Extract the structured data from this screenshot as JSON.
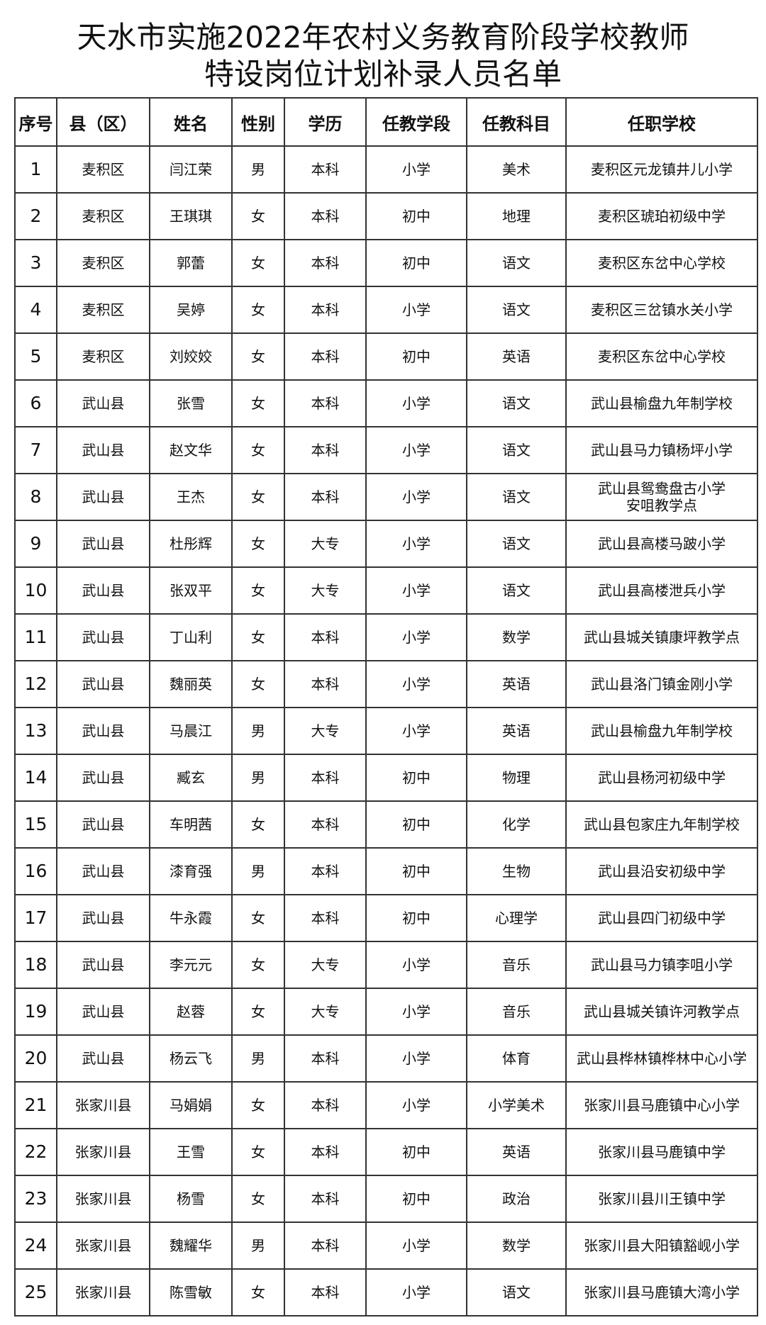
{
  "title": {
    "line1": "天水市实施2022年农村义务教育阶段学校教师",
    "line2": "特设岗位计划补录人员名单"
  },
  "table": {
    "headers": [
      "序号",
      "县（区）",
      "姓名",
      "性别",
      "学历",
      "任教学段",
      "任教科目",
      "任职学校"
    ],
    "rows": [
      [
        "1",
        "麦积区",
        "闫江荣",
        "男",
        "本科",
        "小学",
        "美术",
        "麦积区元龙镇井儿小学"
      ],
      [
        "2",
        "麦积区",
        "王琪琪",
        "女",
        "本科",
        "初中",
        "地理",
        "麦积区琥珀初级中学"
      ],
      [
        "3",
        "麦积区",
        "郭蕾",
        "女",
        "本科",
        "初中",
        "语文",
        "麦积区东岔中心学校"
      ],
      [
        "4",
        "麦积区",
        "吴婷",
        "女",
        "本科",
        "小学",
        "语文",
        "麦积区三岔镇水关小学"
      ],
      [
        "5",
        "麦积区",
        "刘姣姣",
        "女",
        "本科",
        "初中",
        "英语",
        "麦积区东岔中心学校"
      ],
      [
        "6",
        "武山县",
        "张雪",
        "女",
        "本科",
        "小学",
        "语文",
        "武山县榆盘九年制学校"
      ],
      [
        "7",
        "武山县",
        "赵文华",
        "女",
        "本科",
        "小学",
        "语文",
        "武山县马力镇杨坪小学"
      ],
      [
        "8",
        "武山县",
        "王杰",
        "女",
        "本科",
        "小学",
        "语文",
        "武山县鸳鸯盘古小学\n安咀教学点"
      ],
      [
        "9",
        "武山县",
        "杜彤辉",
        "女",
        "大专",
        "小学",
        "语文",
        "武山县高楼马跛小学"
      ],
      [
        "10",
        "武山县",
        "张双平",
        "女",
        "大专",
        "小学",
        "语文",
        "武山县高楼泄兵小学"
      ],
      [
        "11",
        "武山县",
        "丁山利",
        "女",
        "本科",
        "小学",
        "数学",
        "武山县城关镇康坪教学点"
      ],
      [
        "12",
        "武山县",
        "魏丽英",
        "女",
        "本科",
        "小学",
        "英语",
        "武山县洛门镇金刚小学"
      ],
      [
        "13",
        "武山县",
        "马晨江",
        "男",
        "大专",
        "小学",
        "英语",
        "武山县榆盘九年制学校"
      ],
      [
        "14",
        "武山县",
        "臧玄",
        "男",
        "本科",
        "初中",
        "物理",
        "武山县杨河初级中学"
      ],
      [
        "15",
        "武山县",
        "车明茜",
        "女",
        "本科",
        "初中",
        "化学",
        "武山县包家庄九年制学校"
      ],
      [
        "16",
        "武山县",
        "漆育强",
        "男",
        "本科",
        "初中",
        "生物",
        "武山县沿安初级中学"
      ],
      [
        "17",
        "武山县",
        "牛永霞",
        "女",
        "本科",
        "初中",
        "心理学",
        "武山县四门初级中学"
      ],
      [
        "18",
        "武山县",
        "李元元",
        "女",
        "大专",
        "小学",
        "音乐",
        "武山县马力镇李咀小学"
      ],
      [
        "19",
        "武山县",
        "赵蓉",
        "女",
        "大专",
        "小学",
        "音乐",
        "武山县城关镇许河教学点"
      ],
      [
        "20",
        "武山县",
        "杨云飞",
        "男",
        "本科",
        "小学",
        "体育",
        "武山县桦林镇桦林中心小学"
      ],
      [
        "21",
        "张家川县",
        "马娟娟",
        "女",
        "本科",
        "小学",
        "小学美术",
        "张家川县马鹿镇中心小学"
      ],
      [
        "22",
        "张家川县",
        "王雪",
        "女",
        "本科",
        "初中",
        "英语",
        "张家川县马鹿镇中学"
      ],
      [
        "23",
        "张家川县",
        "杨雪",
        "女",
        "本科",
        "初中",
        "政治",
        "张家川县川王镇中学"
      ],
      [
        "24",
        "张家川县",
        "魏耀华",
        "男",
        "本科",
        "小学",
        "数学",
        "张家川县大阳镇豁岘小学"
      ],
      [
        "25",
        "张家川县",
        "陈雪敏",
        "女",
        "本科",
        "小学",
        "语文",
        "张家川县马鹿镇大湾小学"
      ]
    ]
  }
}
